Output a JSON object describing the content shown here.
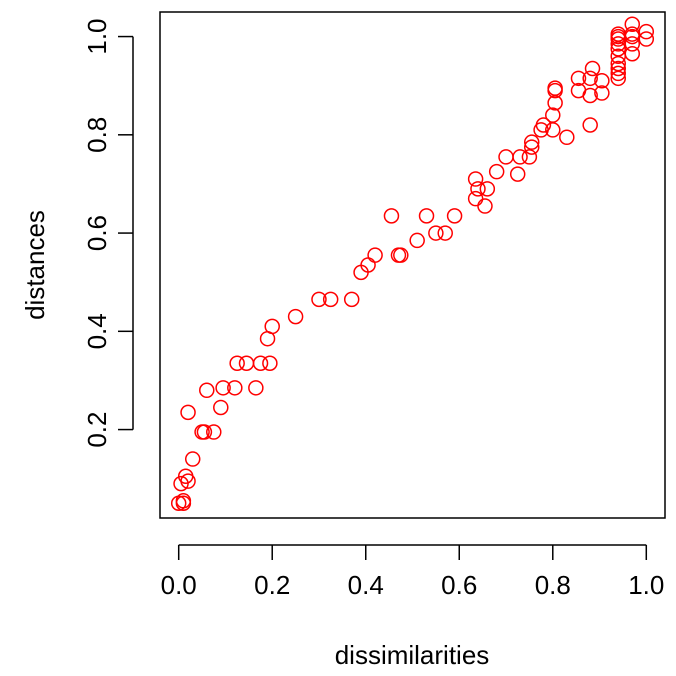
{
  "chart_data": {
    "type": "scatter",
    "xlabel": "dissimilarities",
    "ylabel": "distances",
    "xlim": [
      -0.04,
      1.04
    ],
    "ylim": [
      0.02,
      1.05
    ],
    "x_ticks": [
      0.0,
      0.2,
      0.4,
      0.6,
      0.8,
      1.0
    ],
    "x_tick_labels": [
      "0.0",
      "0.2",
      "0.4",
      "0.6",
      "0.8",
      "1.0"
    ],
    "y_ticks": [
      0.2,
      0.4,
      0.6,
      0.8,
      1.0
    ],
    "y_tick_labels": [
      "0.2",
      "0.4",
      "0.6",
      "0.8",
      "1.0"
    ],
    "grid": false,
    "legend": "none",
    "point_color": "#ff0000",
    "marker": "open-circle",
    "series": [
      {
        "x": [
          0.0,
          0.005,
          0.01,
          0.01,
          0.015,
          0.02,
          0.02,
          0.03,
          0.05,
          0.055,
          0.06,
          0.075,
          0.09,
          0.095,
          0.12,
          0.125,
          0.145,
          0.165,
          0.175,
          0.19,
          0.195,
          0.2,
          0.25,
          0.3,
          0.325,
          0.37,
          0.39,
          0.405,
          0.42,
          0.455,
          0.47,
          0.475,
          0.51,
          0.53,
          0.55,
          0.57,
          0.59,
          0.635,
          0.635,
          0.64,
          0.655,
          0.66,
          0.68,
          0.7,
          0.725,
          0.73,
          0.75,
          0.755,
          0.755,
          0.775,
          0.78,
          0.8,
          0.8,
          0.805,
          0.805,
          0.805,
          0.83,
          0.855,
          0.855,
          0.88,
          0.88,
          0.88,
          0.885,
          0.905,
          0.905,
          0.94,
          0.94,
          0.94,
          0.94,
          0.94,
          0.94,
          0.94,
          0.94,
          0.94,
          0.94,
          0.97,
          0.97,
          0.97,
          0.97,
          0.97,
          1.0,
          1.0
        ],
        "y": [
          0.05,
          0.09,
          0.05,
          0.055,
          0.105,
          0.095,
          0.235,
          0.14,
          0.195,
          0.195,
          0.28,
          0.195,
          0.245,
          0.285,
          0.285,
          0.335,
          0.335,
          0.285,
          0.335,
          0.385,
          0.335,
          0.41,
          0.43,
          0.465,
          0.465,
          0.465,
          0.52,
          0.535,
          0.555,
          0.635,
          0.555,
          0.555,
          0.585,
          0.635,
          0.6,
          0.6,
          0.635,
          0.67,
          0.71,
          0.69,
          0.655,
          0.69,
          0.725,
          0.755,
          0.72,
          0.755,
          0.755,
          0.775,
          0.785,
          0.81,
          0.82,
          0.81,
          0.84,
          0.865,
          0.89,
          0.895,
          0.795,
          0.89,
          0.915,
          0.82,
          0.88,
          0.915,
          0.935,
          0.885,
          0.91,
          0.915,
          0.925,
          0.935,
          0.945,
          0.96,
          0.975,
          0.985,
          0.995,
          1.0,
          1.005,
          0.965,
          0.985,
          1.0,
          1.005,
          1.025,
          0.995,
          1.01
        ]
      }
    ]
  }
}
